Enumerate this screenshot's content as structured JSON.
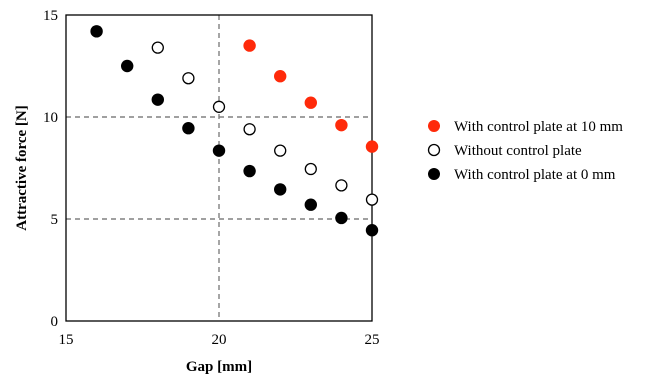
{
  "chart_data": {
    "type": "scatter",
    "xlabel": "Gap [mm]",
    "ylabel": "Attractive force [N]",
    "xlim": [
      15,
      25
    ],
    "ylim": [
      0,
      15
    ],
    "xticks": [
      15,
      20,
      25
    ],
    "yticks": [
      0,
      5,
      10,
      15
    ],
    "x_tick_labels": [
      "15",
      "20",
      "25"
    ],
    "y_tick_labels": [
      "0",
      "5",
      "10",
      "15"
    ],
    "grid": "dashed lines at x=20, y=5, y=10",
    "legend_position": "right",
    "series": [
      {
        "name": "With control plate at 10 mm",
        "marker": "filled-circle",
        "color": "#ff2a0a",
        "points": [
          {
            "x": 21,
            "y": 13.5
          },
          {
            "x": 22,
            "y": 12.0
          },
          {
            "x": 23,
            "y": 10.7
          },
          {
            "x": 24,
            "y": 9.6
          },
          {
            "x": 25,
            "y": 8.55
          }
        ]
      },
      {
        "name": "Without control plate",
        "marker": "open-circle",
        "color": "#000000",
        "points": [
          {
            "x": 18,
            "y": 13.4
          },
          {
            "x": 19,
            "y": 11.9
          },
          {
            "x": 20,
            "y": 10.5
          },
          {
            "x": 21,
            "y": 9.4
          },
          {
            "x": 22,
            "y": 8.35
          },
          {
            "x": 23,
            "y": 7.45
          },
          {
            "x": 24,
            "y": 6.65
          },
          {
            "x": 25,
            "y": 5.95
          }
        ]
      },
      {
        "name": "With control plate at 0 mm",
        "marker": "filled-circle",
        "color": "#000000",
        "points": [
          {
            "x": 16,
            "y": 14.2
          },
          {
            "x": 17,
            "y": 12.5
          },
          {
            "x": 18,
            "y": 10.85
          },
          {
            "x": 19,
            "y": 9.45
          },
          {
            "x": 20,
            "y": 8.35
          },
          {
            "x": 21,
            "y": 7.35
          },
          {
            "x": 22,
            "y": 6.45
          },
          {
            "x": 23,
            "y": 5.7
          },
          {
            "x": 24,
            "y": 5.05
          },
          {
            "x": 25,
            "y": 4.45
          }
        ]
      }
    ]
  }
}
